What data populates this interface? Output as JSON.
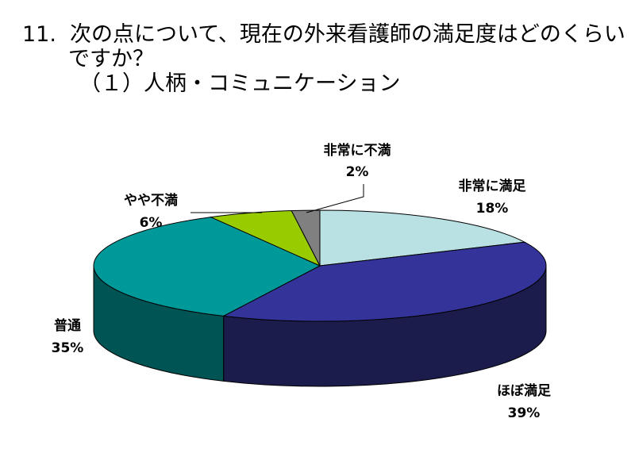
{
  "title": {
    "number": "11.",
    "line1": "次の点について、現在の外来看護師の満足度はどのくらい",
    "line2": "ですか？",
    "line3": "（１）人柄・コミュニケーション"
  },
  "chart_data": {
    "type": "pie",
    "title": "11.次の点について、現在の外来看護師の満足度はどのくらいですか？（１）人柄・コミュニケーション",
    "slices": [
      {
        "label": "非常に満足",
        "value": 18,
        "pct": "18%",
        "color": "#b9e1e3",
        "side": "#86b4b6"
      },
      {
        "label": "ほぼ満足",
        "value": 39,
        "pct": "39%",
        "color": "#333399",
        "side": "#1c1c4c"
      },
      {
        "label": "普通",
        "value": 35,
        "pct": "35%",
        "color": "#009999",
        "side": "#005454"
      },
      {
        "label": "やや不満",
        "value": 6,
        "pct": "6%",
        "color": "#99cc00",
        "side": "#597700"
      },
      {
        "label": "非常に不満",
        "value": 2,
        "pct": "2%",
        "color": "#808080",
        "side": "#4a4a4a"
      }
    ],
    "start": "12 o'clock",
    "direction": "clockwise",
    "style": "3d"
  }
}
